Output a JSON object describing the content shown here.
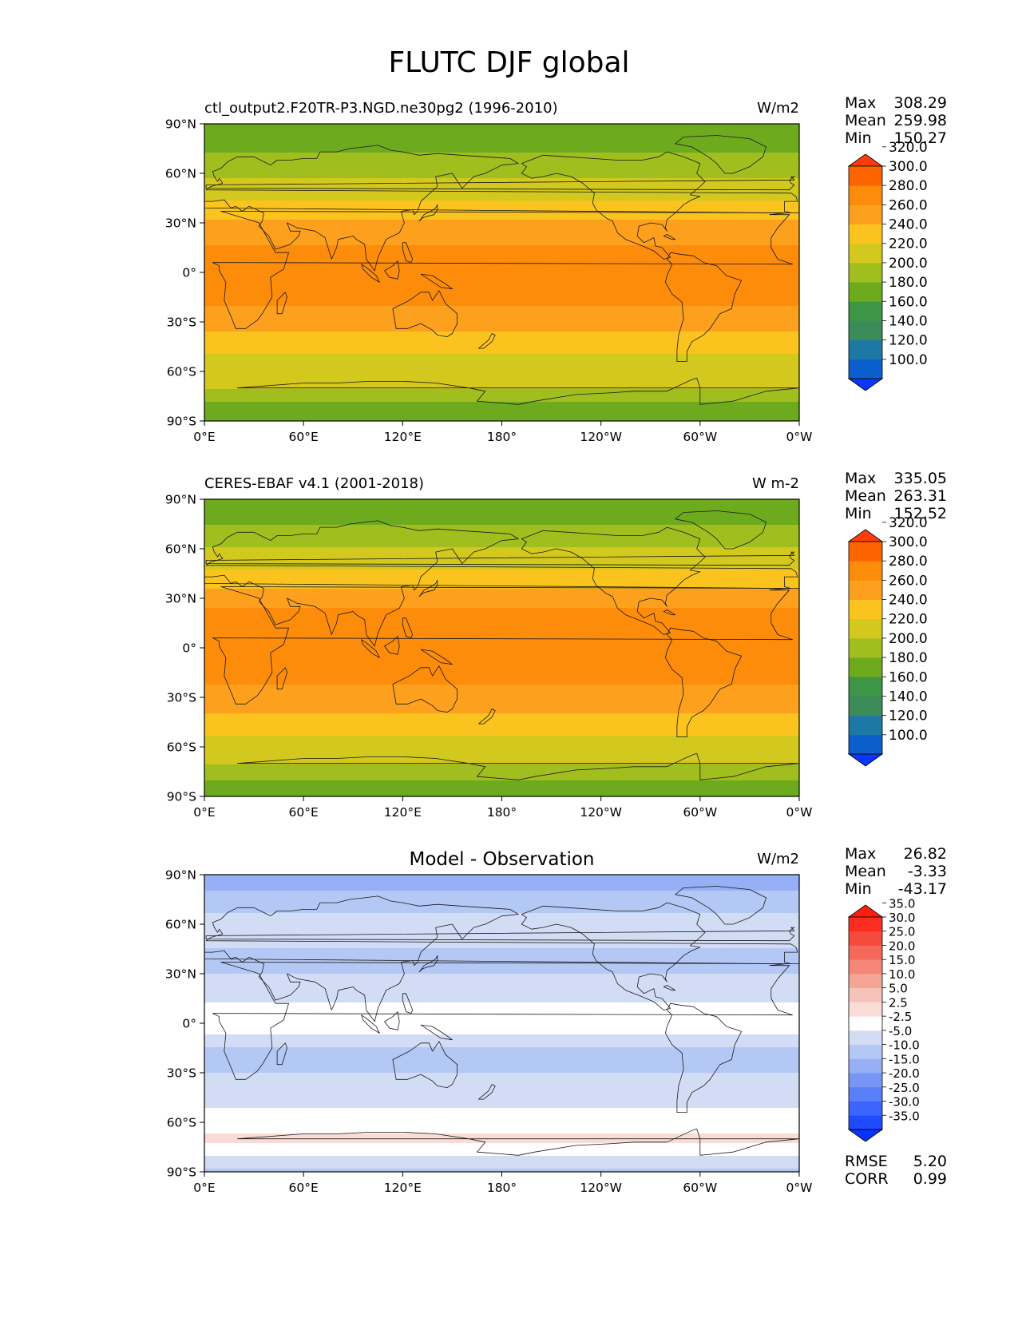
{
  "figure": {
    "title": "FLUTC DJF global"
  },
  "chart_data": [
    {
      "type": "heatmap",
      "panel": "test",
      "left_title": "ctl_output2.F20TR-P3.NGD.ne30pg2 (1996-2010)",
      "center_title": "",
      "units": "W/m2",
      "stats": {
        "Max": "308.29",
        "Mean": "259.98",
        "Min": "150.27"
      },
      "x_ticks": [
        "0°E",
        "60°E",
        "120°E",
        "180°",
        "120°W",
        "60°W",
        "0°W"
      ],
      "y_ticks": [
        "90°N",
        "60°N",
        "30°N",
        "0°",
        "30°S",
        "60°S",
        "90°S"
      ],
      "xlim": [
        0,
        360
      ],
      "ylim": [
        -90,
        90
      ],
      "colorbar": {
        "levels": [
          "100.0",
          "120.0",
          "140.0",
          "160.0",
          "180.0",
          "200.0",
          "220.0",
          "240.0",
          "260.0",
          "280.0",
          "300.0",
          "320.0"
        ],
        "colors": [
          "#0a37fa",
          "#0a5fcd",
          "#1e78a5",
          "#3c8c5a",
          "#3c9646",
          "#6eaa1e",
          "#a0be1e",
          "#d2c81e",
          "#fac31e",
          "#fca01e",
          "#fc8c0a",
          "#fc6400",
          "#ff3c0a"
        ],
        "extend": "both"
      },
      "field": {
        "lat": [
          90,
          80,
          70,
          60,
          50,
          40,
          30,
          20,
          10,
          0,
          -10,
          -20,
          -30,
          -40,
          -50,
          -60,
          -70,
          -80,
          -90
        ],
        "zonal_mean": [
          185,
          190,
          205,
          215,
          230,
          245,
          265,
          278,
          285,
          282,
          282,
          280,
          270,
          255,
          240,
          228,
          220,
          195,
          185
        ]
      }
    },
    {
      "type": "heatmap",
      "panel": "reference",
      "left_title": "CERES-EBAF v4.1 (2001-2018)",
      "center_title": "",
      "units": "W m-2",
      "stats": {
        "Max": "335.05",
        "Mean": "263.31",
        "Min": "152.52"
      },
      "x_ticks": [
        "0°E",
        "60°E",
        "120°E",
        "180°",
        "120°W",
        "60°W",
        "0°W"
      ],
      "y_ticks": [
        "90°N",
        "60°N",
        "30°N",
        "0°",
        "30°S",
        "60°S",
        "90°S"
      ],
      "xlim": [
        0,
        360
      ],
      "ylim": [
        -90,
        90
      ],
      "colorbar": {
        "levels": [
          "100.0",
          "120.0",
          "140.0",
          "160.0",
          "180.0",
          "200.0",
          "220.0",
          "240.0",
          "260.0",
          "280.0",
          "300.0",
          "320.0"
        ],
        "colors": [
          "#0a37fa",
          "#0a5fcd",
          "#1e78a5",
          "#3c8c5a",
          "#3c9646",
          "#6eaa1e",
          "#a0be1e",
          "#d2c81e",
          "#fac31e",
          "#fca01e",
          "#fc8c0a",
          "#fc6400",
          "#ff3c0a"
        ],
        "extend": "both"
      },
      "field": {
        "lat": [
          90,
          80,
          70,
          60,
          50,
          40,
          30,
          20,
          10,
          0,
          -10,
          -20,
          -30,
          -40,
          -50,
          -60,
          -70,
          -80,
          -90
        ],
        "zonal_mean": [
          190,
          195,
          205,
          220,
          235,
          250,
          270,
          285,
          290,
          285,
          285,
          282,
          275,
          260,
          245,
          232,
          222,
          200,
          190
        ]
      }
    },
    {
      "type": "heatmap",
      "panel": "difference",
      "left_title": "",
      "center_title": "Model - Observation",
      "units": "W/m2",
      "stats": {
        "Max": "26.82",
        "Mean": "-3.33",
        "Min": "-43.17"
      },
      "extra_stats": {
        "RMSE": "5.20",
        "CORR": "0.99"
      },
      "x_ticks": [
        "0°E",
        "60°E",
        "120°E",
        "180°",
        "120°W",
        "60°W",
        "0°W"
      ],
      "y_ticks": [
        "90°N",
        "60°N",
        "30°N",
        "0°",
        "30°S",
        "60°S",
        "90°S"
      ],
      "xlim": [
        0,
        360
      ],
      "ylim": [
        -90,
        90
      ],
      "colorbar": {
        "levels": [
          "-35.0",
          "-30.0",
          "-25.0",
          "-20.0",
          "-15.0",
          "-10.0",
          "-5.0",
          "-2.5",
          "2.5",
          "5.0",
          "10.0",
          "15.0",
          "20.0",
          "25.0",
          "30.0",
          "35.0"
        ],
        "colors": [
          "#0a32ff",
          "#1e4bff",
          "#3c64ff",
          "#5a7dfa",
          "#7896f5",
          "#96aff5",
          "#b4c8f5",
          "#d2dcf5",
          "#ffffff",
          "#fadcd7",
          "#f5c3b9",
          "#f5a596",
          "#f58778",
          "#f5695a",
          "#f54b3c",
          "#fa2d1e",
          "#ff1e0a"
        ],
        "extend": "both"
      },
      "field": {
        "lat": [
          90,
          80,
          70,
          60,
          50,
          40,
          30,
          20,
          10,
          0,
          -10,
          -20,
          -30,
          -40,
          -50,
          -60,
          -70,
          -80,
          -90
        ],
        "zonal_mean": [
          -12,
          -10,
          -6,
          -3,
          -4,
          -6,
          -5,
          -4,
          -2,
          2,
          -4,
          -6,
          -5,
          -5,
          -3,
          0,
          4,
          -2,
          -6
        ]
      }
    }
  ]
}
